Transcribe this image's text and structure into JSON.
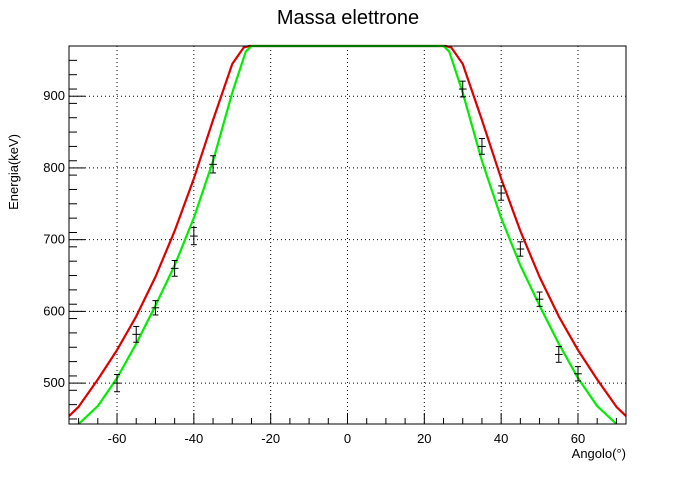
{
  "chart_data": {
    "type": "scatter",
    "title": "Massa elettrone",
    "xlabel": "Angolo(°)",
    "ylabel": "Energia(keV)",
    "xlim": [
      -72.5,
      72.5
    ],
    "ylim": [
      443,
      970
    ],
    "grid": true,
    "x_ticks": [
      -60,
      -40,
      -20,
      0,
      20,
      40,
      60
    ],
    "y_ticks": [
      500,
      600,
      700,
      800,
      900
    ],
    "colors": {
      "red_curve": "#dd0000",
      "green_curve": "#00ee00",
      "points": "#000000"
    },
    "series": [
      {
        "kind": "curve",
        "color": "#dd0000",
        "x": [
          -72.5,
          -70,
          -65,
          -60,
          -55,
          -50,
          -45,
          -40,
          -35,
          -30,
          -27,
          -25.5,
          25.5,
          27,
          30,
          35,
          40,
          45,
          50,
          55,
          60,
          65,
          70,
          72.5
        ],
        "y": [
          454,
          467,
          505,
          546,
          593,
          648,
          712,
          785,
          867,
          945,
          968,
          970,
          970,
          968,
          945,
          867,
          785,
          712,
          648,
          593,
          546,
          505,
          467,
          454
        ]
      },
      {
        "kind": "curve",
        "color": "#00ee00",
        "x": [
          -70,
          -65,
          -60,
          -55,
          -50,
          -45,
          -40,
          -35,
          -30,
          -26.5,
          -25,
          25,
          26.5,
          30,
          35,
          40,
          45,
          50,
          55,
          60,
          65,
          70
        ],
        "y": [
          443,
          468,
          507,
          555,
          608,
          664,
          730,
          810,
          905,
          962,
          970,
          970,
          962,
          905,
          810,
          730,
          664,
          608,
          555,
          507,
          468,
          443
        ]
      },
      {
        "kind": "points",
        "color": "#000000",
        "x_err": 1,
        "x": [
          -60,
          -55,
          -50,
          -45,
          -40,
          -35,
          30,
          35,
          40,
          45,
          50,
          55,
          60
        ],
        "y": [
          500,
          568,
          605,
          660,
          705,
          805,
          910,
          830,
          765,
          687,
          617,
          540,
          513
        ],
        "y_err": [
          12,
          11,
          10,
          11,
          12,
          12,
          11,
          11,
          10,
          10,
          10,
          11,
          10
        ]
      }
    ]
  }
}
